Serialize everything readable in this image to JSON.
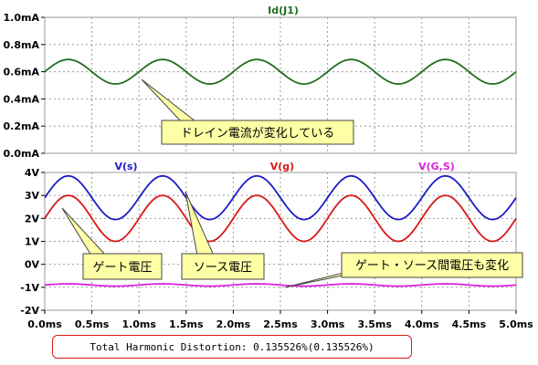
{
  "chart_data": [
    {
      "type": "line",
      "title": "Id(J1)",
      "title_color": "#1f6e1f",
      "x": {
        "min": 0,
        "max": 5.0,
        "unit": "ms",
        "ticks": [
          "0.0ms",
          "0.5ms",
          "1.0ms",
          "1.5ms",
          "2.0ms",
          "2.5ms",
          "3.0ms",
          "3.5ms",
          "4.0ms",
          "4.5ms",
          "5.0ms"
        ]
      },
      "ylim": [
        0,
        1.0
      ],
      "yticks": [
        {
          "v": 1.0,
          "label": "1.0mA"
        },
        {
          "v": 0.8,
          "label": "0.8mA"
        },
        {
          "v": 0.6,
          "label": "0.6mA"
        },
        {
          "v": 0.4,
          "label": "0.4mA"
        },
        {
          "v": 0.2,
          "label": "0.2mA"
        },
        {
          "v": 0.0,
          "label": "0.0mA"
        }
      ],
      "grid": true,
      "series": [
        {
          "name": "Id(J1)",
          "color": "#1f6e1f",
          "offset": 0.6,
          "amplitude": 0.09,
          "frequency_khz": 1.0,
          "phase_deg": 0,
          "x_start": 0,
          "x_end": 5.0
        }
      ]
    },
    {
      "type": "line",
      "title": "",
      "x": {
        "min": 0,
        "max": 5.0,
        "unit": "ms",
        "ticks": [
          "0.0ms",
          "0.5ms",
          "1.0ms",
          "1.5ms",
          "2.0ms",
          "2.5ms",
          "3.0ms",
          "3.5ms",
          "4.0ms",
          "4.5ms",
          "5.0ms"
        ]
      },
      "ylim": [
        -2,
        4
      ],
      "yticks": [
        {
          "v": 4,
          "label": "4V"
        },
        {
          "v": 3,
          "label": "3V"
        },
        {
          "v": 2,
          "label": "2V"
        },
        {
          "v": 1,
          "label": "1V"
        },
        {
          "v": 0,
          "label": "0V"
        },
        {
          "v": -1,
          "label": "-1V"
        },
        {
          "v": -2,
          "label": "-2V"
        }
      ],
      "grid": true,
      "series": [
        {
          "name": "V(s)",
          "color": "#1c1cc8",
          "offset": 2.9,
          "amplitude": 0.95,
          "frequency_khz": 1.0,
          "phase_deg": 0,
          "x_start": 0,
          "x_end": 5.0
        },
        {
          "name": "V(g)",
          "color": "#d81818",
          "offset": 2.0,
          "amplitude": 1.0,
          "frequency_khz": 1.0,
          "phase_deg": 0,
          "x_start": 0,
          "x_end": 5.0
        },
        {
          "name": "V(G,S)",
          "color": "#dd22dd",
          "offset": -0.9,
          "amplitude": 0.05,
          "frequency_khz": 1.0,
          "phase_deg": 0,
          "x_start": 0,
          "x_end": 5.0
        }
      ]
    }
  ],
  "annotations": {
    "drain_current_change": "ドレイン電流が変化している",
    "gate_voltage": "ゲート電圧",
    "source_voltage": "ソース電圧",
    "gs_voltage_change": "ゲート・ソース間電圧も変化"
  },
  "thd": {
    "text": "Total Harmonic Distortion: 0.135526%(0.135526%)"
  },
  "colors": {
    "grid": "#9a9a9a",
    "callout_fill": "#ffffa6",
    "callout_border": "#444444",
    "thd_border": "#d81818"
  }
}
